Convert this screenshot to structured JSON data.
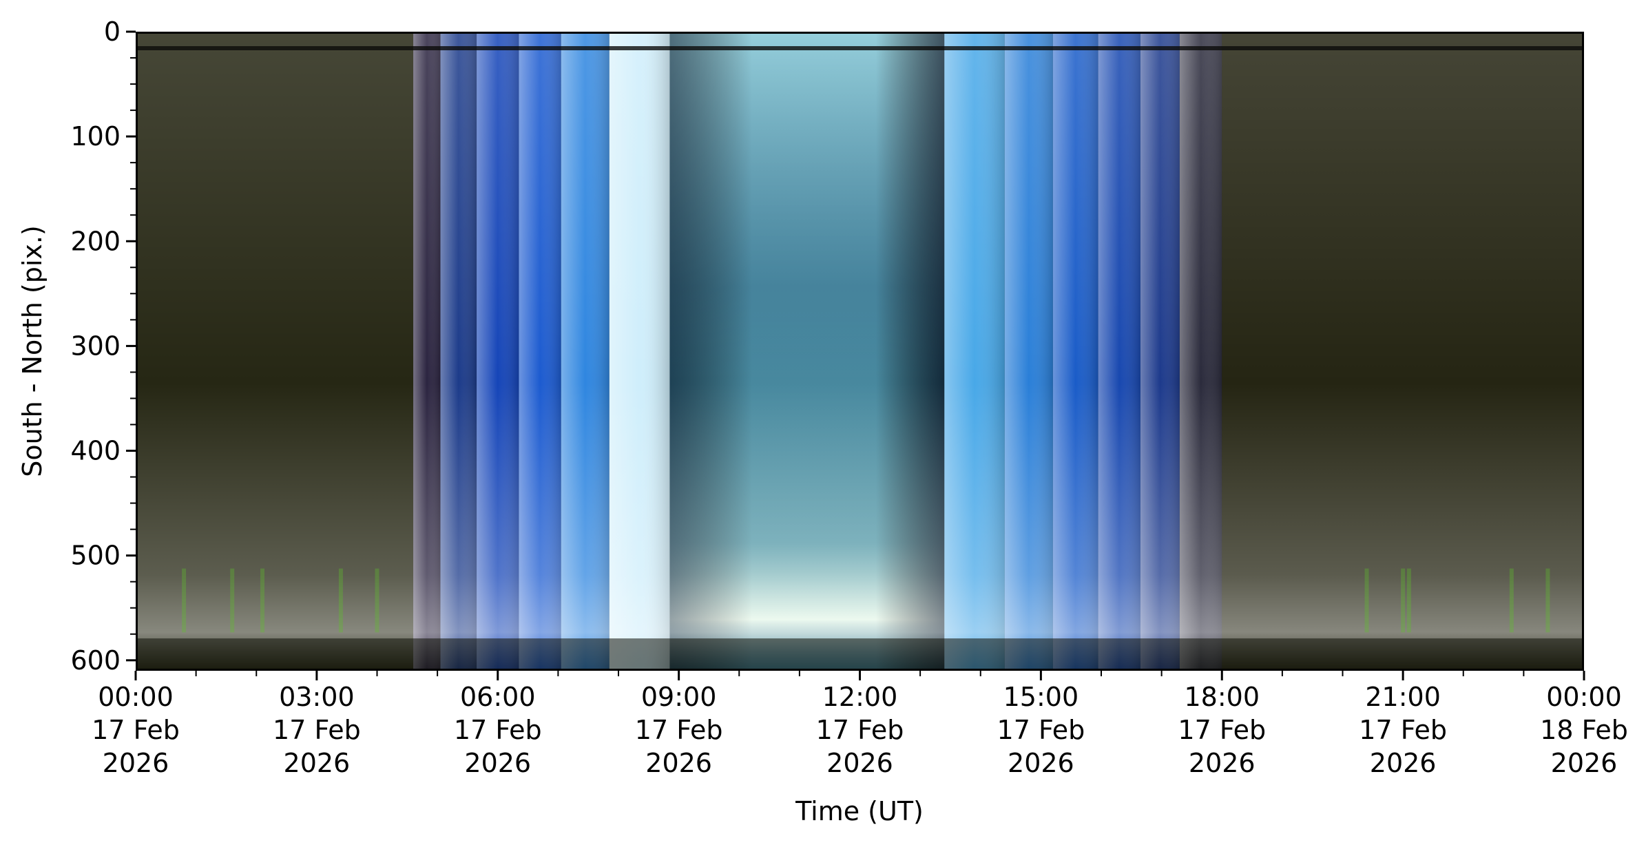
{
  "chart_data": {
    "type": "heatmap",
    "description_kind": "keogram",
    "xlabel": "Time (UT)",
    "ylabel": "South - North (pix.)",
    "x_range_hours": [
      0,
      24
    ],
    "y_range": [
      0,
      610
    ],
    "y_inverted": true,
    "x_ticks": [
      {
        "hour": 0,
        "lines": [
          "00:00",
          "17 Feb",
          "2026"
        ]
      },
      {
        "hour": 3,
        "lines": [
          "03:00",
          "17 Feb",
          "2026"
        ]
      },
      {
        "hour": 6,
        "lines": [
          "06:00",
          "17 Feb",
          "2026"
        ]
      },
      {
        "hour": 9,
        "lines": [
          "09:00",
          "17 Feb",
          "2026"
        ]
      },
      {
        "hour": 12,
        "lines": [
          "12:00",
          "17 Feb",
          "2026"
        ]
      },
      {
        "hour": 15,
        "lines": [
          "15:00",
          "17 Feb",
          "2026"
        ]
      },
      {
        "hour": 18,
        "lines": [
          "18:00",
          "17 Feb",
          "2026"
        ]
      },
      {
        "hour": 21,
        "lines": [
          "21:00",
          "17 Feb",
          "2026"
        ]
      },
      {
        "hour": 24,
        "lines": [
          "00:00",
          "18 Feb",
          "2026"
        ]
      }
    ],
    "x_minor_tick_step_hours": 1,
    "y_ticks": [
      0,
      100,
      200,
      300,
      400,
      500,
      600
    ],
    "y_minor_tick_step": 25,
    "grid": false,
    "bands": [
      {
        "start": 0.0,
        "end": 4.6,
        "color": "#262714"
      },
      {
        "start": 4.6,
        "end": 5.05,
        "color": "#2b2440"
      },
      {
        "start": 5.05,
        "end": 5.65,
        "color": "#1c3b8a"
      },
      {
        "start": 5.65,
        "end": 6.35,
        "color": "#1545b8"
      },
      {
        "start": 6.35,
        "end": 7.05,
        "color": "#1c5bd0"
      },
      {
        "start": 7.05,
        "end": 7.85,
        "color": "#2f86e0"
      },
      {
        "start": 7.85,
        "end": 8.85,
        "color": "#cfeefb"
      },
      {
        "start": 8.85,
        "end": 13.4,
        "color": "#3d7e98"
      },
      {
        "start": 13.4,
        "end": 14.4,
        "color": "#48a8e8"
      },
      {
        "start": 14.4,
        "end": 15.2,
        "color": "#2a7fd8"
      },
      {
        "start": 15.2,
        "end": 15.95,
        "color": "#1a5cc8"
      },
      {
        "start": 15.95,
        "end": 16.65,
        "color": "#1848b0"
      },
      {
        "start": 16.65,
        "end": 17.3,
        "color": "#1d3a8c"
      },
      {
        "start": 17.3,
        "end": 18.0,
        "color": "#2b2b3c"
      },
      {
        "start": 18.0,
        "end": 24.0,
        "color": "#252513"
      }
    ]
  }
}
